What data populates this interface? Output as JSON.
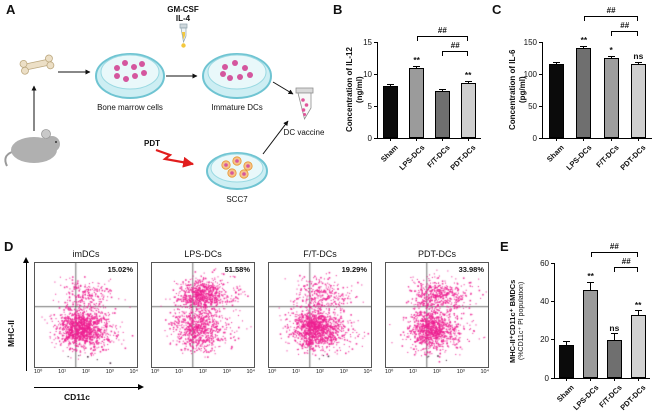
{
  "panels": {
    "A": {
      "label": "A",
      "gmcsf": "GM-CSF",
      "il4": "IL-4",
      "dish1_label": "Bone marrow cells",
      "dish2_label": "Immature DCs",
      "tube_label": "DC vaccine",
      "pdt_label": "PDT",
      "dish3_label": "SCC7"
    },
    "B": {
      "label": "B"
    },
    "C": {
      "label": "C"
    },
    "D": {
      "label": "D"
    },
    "E": {
      "label": "E"
    }
  },
  "chart_data": [
    {
      "panel": "B",
      "type": "bar",
      "ylabel_lines": [
        "Concentration of IL-12",
        "(ng/ml)"
      ],
      "categories": [
        "Sham",
        "LPS-DCs",
        "F/T-DCs",
        "PDT-DCs"
      ],
      "values": [
        8.2,
        10.9,
        7.3,
        8.6
      ],
      "errors": [
        0.2,
        0.35,
        0.3,
        0.3
      ],
      "bar_colors": [
        "#0b0b0b",
        "#9b9b9b",
        "#6f6f6f",
        "#cfcfcf"
      ],
      "ylim": [
        0,
        15
      ],
      "yticks": [
        0,
        5,
        10,
        15
      ],
      "sig_above": [
        "",
        "**",
        "",
        "**"
      ],
      "brackets": [
        {
          "from": 1,
          "to": 3,
          "label": "##",
          "level": 2
        },
        {
          "from": 2,
          "to": 3,
          "label": "##",
          "level": 1
        }
      ]
    },
    {
      "panel": "C",
      "type": "bar",
      "ylabel_lines": [
        "Concentration of IL-6",
        "(pg/ml)"
      ],
      "categories": [
        "Sham",
        "LPS-DCs",
        "F/T-DCs",
        "PDT-DCs"
      ],
      "values": [
        116,
        140,
        125,
        115
      ],
      "errors": [
        2,
        3,
        3,
        3
      ],
      "bar_colors": [
        "#0b0b0b",
        "#6f6f6f",
        "#9e9e9e",
        "#cfcfcf"
      ],
      "ylim": [
        0,
        150
      ],
      "yticks": [
        0,
        50,
        100,
        150
      ],
      "sig_above": [
        "",
        "**",
        "*",
        "ns"
      ],
      "brackets": [
        {
          "from": 1,
          "to": 3,
          "label": "##",
          "level": 2
        },
        {
          "from": 2,
          "to": 3,
          "label": "##",
          "level": 1
        }
      ]
    },
    {
      "panel": "D",
      "type": "scatter",
      "subtype": "flow-cytometry",
      "xlabel": "CD11c",
      "ylabel": "MHC-II",
      "xticks": [
        "10⁰",
        "10¹",
        "10²",
        "10³",
        "10⁴"
      ],
      "dot_color": "#ed1e90",
      "plots": [
        {
          "title": "imDCs",
          "percent": "15.02%"
        },
        {
          "title": "LPS-DCs",
          "percent": "51.58%"
        },
        {
          "title": "F/T-DCs",
          "percent": "19.29%"
        },
        {
          "title": "PDT-DCs",
          "percent": "33.98%"
        }
      ]
    },
    {
      "panel": "E",
      "type": "bar",
      "ylabel_lines": [
        "MHC-II⁺CD11c⁺ BMDCs",
        "(%CD11c⁺ PI population)"
      ],
      "categories": [
        "Sham",
        "LPS-DCs",
        "F/T-DCs",
        "PDT-DCs"
      ],
      "values": [
        17,
        46,
        20,
        33
      ],
      "errors": [
        2,
        4,
        3,
        2
      ],
      "bar_colors": [
        "#0b0b0b",
        "#9b9b9b",
        "#6f6f6f",
        "#d2d2d2"
      ],
      "ylim": [
        0,
        60
      ],
      "yticks": [
        0,
        20,
        40,
        60
      ],
      "sig_above": [
        "",
        "**",
        "ns",
        "**"
      ],
      "brackets": [
        {
          "from": 1,
          "to": 3,
          "label": "##",
          "level": 2
        },
        {
          "from": 2,
          "to": 3,
          "label": "##",
          "level": 1
        }
      ]
    }
  ]
}
